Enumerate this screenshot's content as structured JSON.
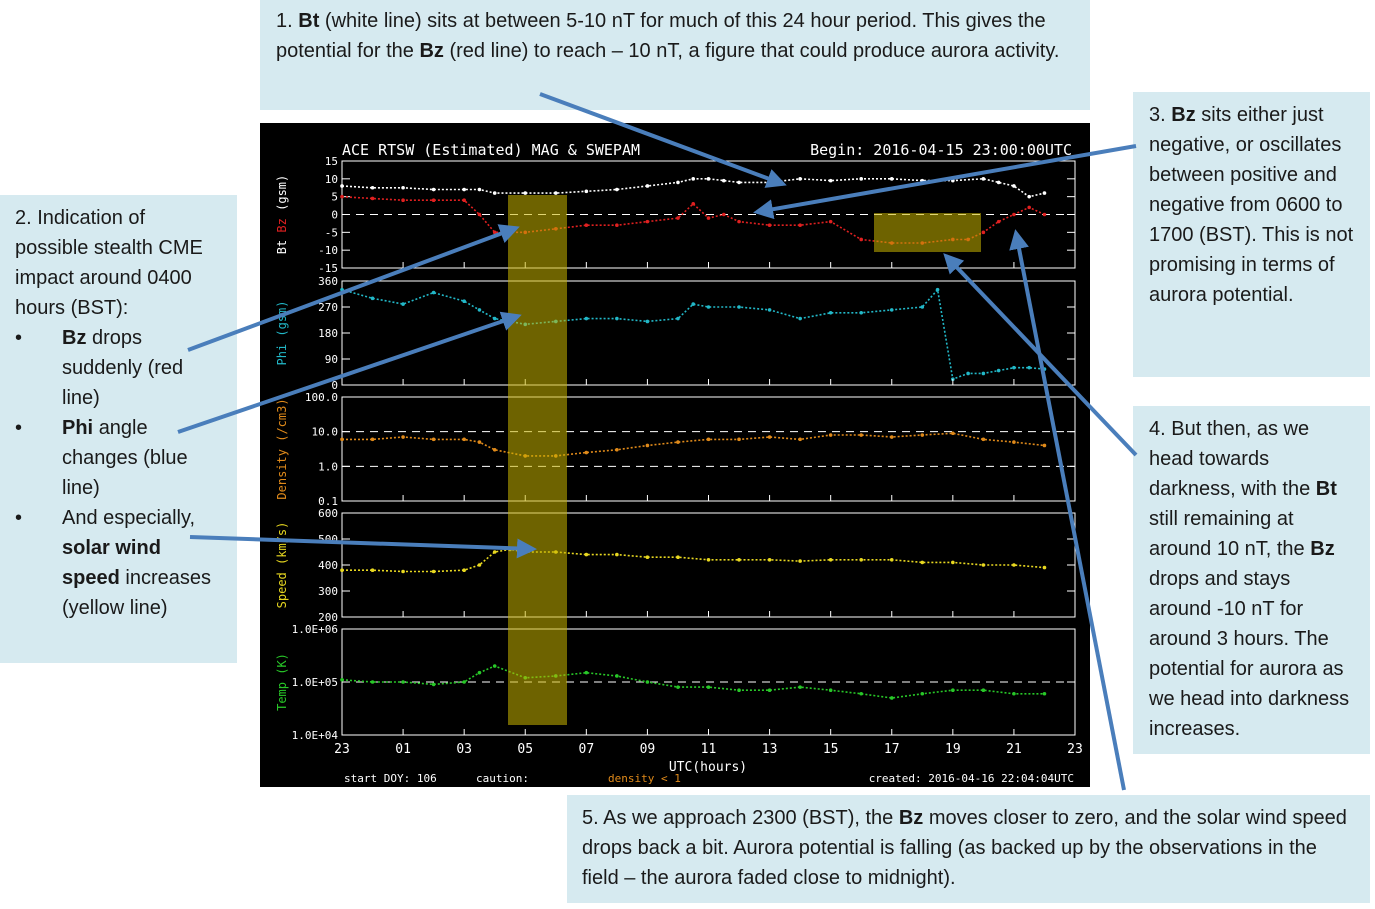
{
  "notes": {
    "n1": {
      "num": "1.",
      "bt": "Bt",
      "a": "(white line) sits at between 5-10 nT for much of this 24 hour period. This gives the potential for the",
      "bz": "Bz",
      "b": "(red line) to reach – 10 nT, a figure that could produce aurora activity."
    },
    "n2": {
      "title": "2. Indication of possible stealth CME impact around 0400 hours (BST):",
      "bullet": "•",
      "b1_bold": "Bz",
      "b1_text": "drops suddenly (red line)",
      "b2_bold": "Phi",
      "b2_text": "angle changes (blue line)",
      "b3_text": "And especially,",
      "b3_bold": "solar wind speed",
      "b3_end": "increases (yellow line)"
    },
    "n3": {
      "num": "3.",
      "bz": "Bz",
      "text": "sits either just negative, or oscillates between positive and negative from 0600 to 1700 (BST). This is not promising in terms of aurora potential."
    },
    "n4": {
      "a": "4. But then, as we head towards darkness, with the",
      "bt": "Bt",
      "b": "still remaining at around 10 nT, the",
      "bz": "Bz",
      "c": "drops and stays around -10 nT for around 3 hours. The potential for aurora as we head into darkness increases."
    },
    "n5": {
      "a": "5. As we approach 2300 (BST), the",
      "bz": "Bz",
      "b": "moves closer to zero, and the solar wind speed drops back a bit. Aurora potential is falling (as backed up by the observations in the field – the aurora faded close to midnight)."
    }
  },
  "chart_data": {
    "type": "line",
    "title": "ACE RTSW (Estimated) MAG & SWEPAM",
    "begin": "Begin: 2016-04-15 23:00:00UTC",
    "xlabel": "UTC(hours)",
    "x_ticks": [
      "23",
      "01",
      "03",
      "05",
      "07",
      "09",
      "11",
      "13",
      "15",
      "17",
      "19",
      "21",
      "23"
    ],
    "footer": {
      "start": "start DOY: 106",
      "caution": "caution:",
      "density": "density < 1",
      "created": "created: 2016-04-16 22:04:04UTC"
    },
    "panels": [
      {
        "id": "mag",
        "ylabel_left": "Bt",
        "ylabel_mid": "Bz",
        "ylabel_right": "(gsm)",
        "ylim": [
          -15,
          15
        ],
        "ticks": [
          "15",
          "10",
          "5",
          "0",
          "-5",
          "-10",
          "-15"
        ],
        "series": [
          {
            "name": "Bt",
            "color": "#ffffff",
            "x": [
              0,
              1,
              2,
              3,
              4,
              4.5,
              5,
              6,
              7,
              8,
              9,
              10,
              11,
              11.5,
              12,
              12.5,
              13,
              14,
              15,
              16,
              17,
              18,
              19,
              20,
              21,
              21.5,
              22,
              22.5,
              23
            ],
            "y": [
              8,
              7.5,
              7.5,
              7,
              7,
              7,
              6,
              6,
              6,
              6.5,
              7,
              8,
              9,
              10,
              10,
              9.5,
              9,
              9,
              10,
              9.5,
              10,
              10,
              9.5,
              9.5,
              10,
              9,
              8,
              5,
              6
            ]
          },
          {
            "name": "Bz",
            "color": "#e02020",
            "x": [
              0,
              1,
              2,
              3,
              4,
              4.5,
              5,
              6,
              7,
              8,
              9,
              10,
              11,
              11.5,
              12,
              12.5,
              13,
              14,
              15,
              16,
              17,
              18,
              19,
              20,
              20.5,
              21,
              21.5,
              22,
              22.5,
              23
            ],
            "y": [
              5,
              4.5,
              4,
              4,
              4,
              0,
              -5,
              -5,
              -4,
              -3,
              -3,
              -2,
              -1,
              3,
              -1,
              0,
              -2,
              -3,
              -3,
              -2,
              -7,
              -8,
              -8,
              -7,
              -7,
              -5,
              -2,
              0,
              2,
              0
            ]
          }
        ]
      },
      {
        "id": "phi",
        "ylabel": "Phi (gsm)",
        "ylim": [
          0,
          360
        ],
        "ticks": [
          "360",
          "270",
          "180",
          "90",
          "0"
        ],
        "series": [
          {
            "name": "Phi",
            "color": "#22b8c8",
            "x": [
              0,
              1,
              2,
              3,
              4,
              4.5,
              5,
              6,
              7,
              8,
              9,
              10,
              11,
              11.5,
              12,
              13,
              14,
              15,
              16,
              17,
              18,
              19,
              19.5,
              20,
              20.5,
              21,
              21.5,
              22,
              22.5,
              23
            ],
            "y": [
              330,
              300,
              280,
              320,
              290,
              260,
              230,
              210,
              220,
              230,
              230,
              220,
              230,
              280,
              270,
              270,
              260,
              230,
              250,
              250,
              260,
              270,
              330,
              20,
              40,
              40,
              50,
              60,
              60,
              55
            ]
          }
        ]
      },
      {
        "id": "density",
        "ylabel": "Density (/cm3)",
        "ylim": [
          0.1,
          100
        ],
        "log": true,
        "ticks": [
          "100.0",
          "10.0",
          "1.0",
          "0.1"
        ],
        "series": [
          {
            "name": "Density",
            "color": "#e08a1a",
            "x": [
              0,
              1,
              2,
              3,
              4,
              4.5,
              5,
              6,
              7,
              8,
              9,
              10,
              11,
              12,
              13,
              14,
              15,
              16,
              17,
              18,
              19,
              20,
              21,
              22,
              23
            ],
            "y": [
              6,
              6,
              7,
              6,
              6,
              5,
              3,
              2,
              2,
              2.5,
              3,
              4,
              5,
              6,
              6,
              7,
              6,
              8,
              8,
              7,
              8,
              9,
              6,
              5,
              4
            ]
          }
        ]
      },
      {
        "id": "speed",
        "ylabel": "Speed (km/s)",
        "ylim": [
          200,
          600
        ],
        "ticks": [
          "600",
          "500",
          "400",
          "300",
          "200"
        ],
        "series": [
          {
            "name": "Speed",
            "color": "#e8d820",
            "x": [
              0,
              1,
              2,
              3,
              4,
              4.5,
              5,
              5.5,
              6,
              7,
              8,
              9,
              10,
              11,
              12,
              13,
              14,
              15,
              16,
              17,
              18,
              19,
              20,
              21,
              22,
              23
            ],
            "y": [
              380,
              380,
              375,
              375,
              380,
              400,
              450,
              460,
              450,
              450,
              440,
              440,
              430,
              430,
              420,
              420,
              420,
              415,
              420,
              420,
              420,
              410,
              410,
              400,
              400,
              390
            ]
          }
        ]
      },
      {
        "id": "temp",
        "ylabel": "Temp (K)",
        "ylim": [
          10000,
          1000000
        ],
        "log": true,
        "ticks": [
          "1.0E+06",
          "1.0E+05",
          "1.0E+04"
        ],
        "series": [
          {
            "name": "Temp",
            "color": "#28c828",
            "x": [
              0,
              1,
              2,
              3,
              4,
              4.5,
              5,
              6,
              7,
              8,
              9,
              10,
              11,
              12,
              13,
              14,
              15,
              16,
              17,
              18,
              19,
              20,
              21,
              22,
              23
            ],
            "y": [
              110000,
              100000,
              100000,
              90000,
              100000,
              150000,
              200000,
              120000,
              130000,
              150000,
              130000,
              100000,
              80000,
              80000,
              70000,
              70000,
              80000,
              70000,
              60000,
              50000,
              60000,
              70000,
              70000,
              60000,
              60000
            ]
          }
        ]
      }
    ]
  }
}
